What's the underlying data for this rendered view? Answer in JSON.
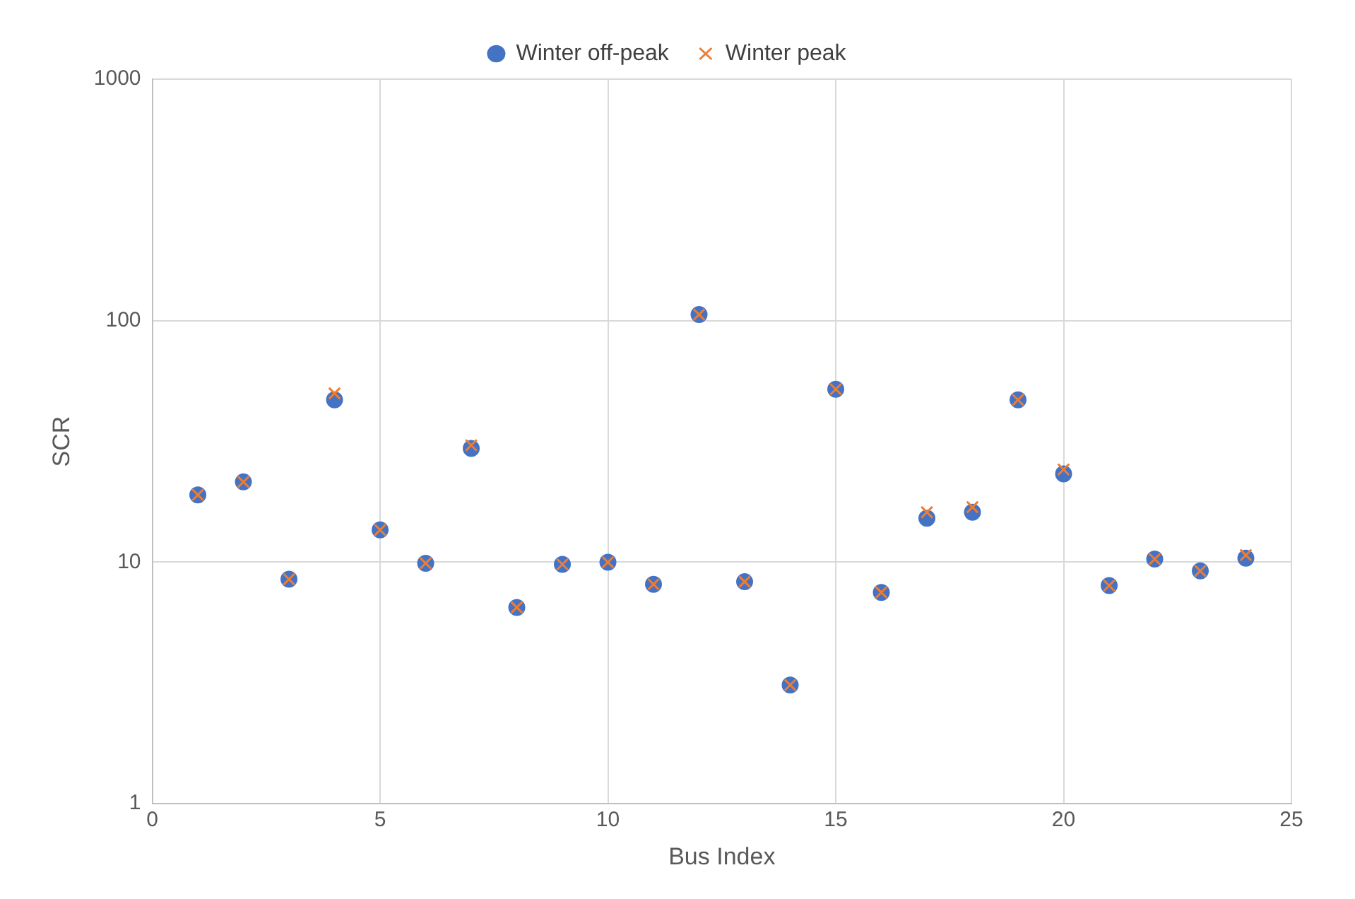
{
  "chart_data": {
    "type": "scatter",
    "xlabel": "Bus Index",
    "ylabel": "SCR",
    "log": "y",
    "grid": true,
    "legend": "top",
    "x": [
      1,
      2,
      3,
      4,
      5,
      6,
      7,
      8,
      9,
      10,
      11,
      12,
      13,
      14,
      15,
      16,
      17,
      18,
      19,
      20,
      21,
      22,
      23,
      24
    ],
    "xlim": [
      0,
      25
    ],
    "xticks": [
      0,
      5,
      10,
      15,
      20,
      25
    ],
    "ylim": [
      1,
      1000
    ],
    "yticks": [
      1,
      10,
      100,
      1000
    ],
    "series": [
      {
        "name": "Winter off-peak",
        "color": "#4472c4",
        "marker": "circle",
        "values": [
          19,
          21.5,
          8.5,
          47,
          13.6,
          9.9,
          29.6,
          6.5,
          9.8,
          10,
          8.1,
          106,
          8.3,
          3.1,
          52,
          7.5,
          15.2,
          16.1,
          47,
          23.2,
          8,
          10.3,
          9.2,
          10.4
        ]
      },
      {
        "name": "Winter peak",
        "color": "#ed7d31",
        "marker": "cross",
        "values": [
          19,
          21.5,
          8.5,
          50,
          13.6,
          9.9,
          30.5,
          6.5,
          9.8,
          10,
          8.1,
          106,
          8.3,
          3.1,
          52,
          7.5,
          16.1,
          16.9,
          47,
          24.2,
          8,
          10.3,
          9.2,
          10.7
        ]
      }
    ]
  }
}
